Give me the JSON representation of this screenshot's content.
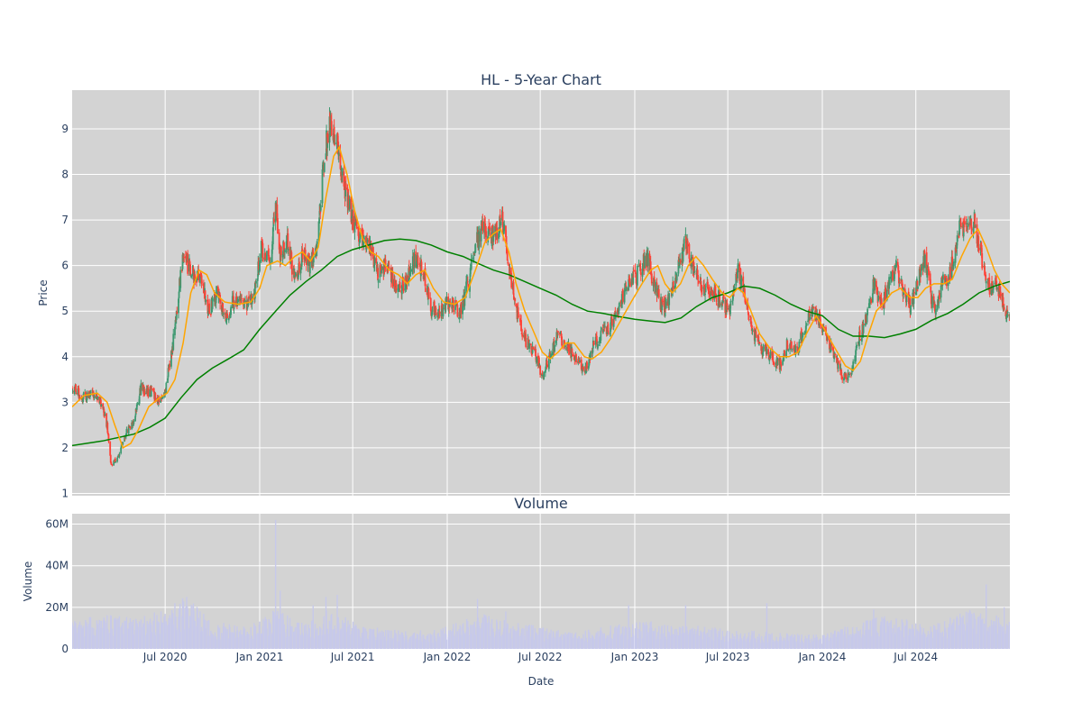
{
  "chart_data": {
    "type": "candlestick",
    "title": "HL - 5-Year Chart",
    "price_panel": {
      "ylabel": "Price",
      "ylim": [
        0.95,
        9.85
      ],
      "yticks": [
        1,
        2,
        3,
        4,
        5,
        6,
        7,
        8,
        9
      ],
      "background": "#d3d3d3",
      "grid": true
    },
    "volume_panel": {
      "title": "Volume",
      "ylabel": "Volume",
      "ylim": [
        0,
        65000000
      ],
      "yticks": [
        0,
        20000000,
        40000000,
        60000000
      ],
      "ytick_labels": [
        "0",
        "20M",
        "40M",
        "60M"
      ],
      "background": "#d3d3d3",
      "bar_color": "#c7c9ea",
      "grid": true
    },
    "xlabel": "Date",
    "x_range": [
      "2020-01-02",
      "2024-12-31"
    ],
    "x_ticks": [
      {
        "date": "2020-07-01",
        "label": "Jul 2020"
      },
      {
        "date": "2021-01-01",
        "label": "Jan 2021"
      },
      {
        "date": "2021-07-01",
        "label": "Jul 2021"
      },
      {
        "date": "2022-01-01",
        "label": "Jan 2022"
      },
      {
        "date": "2022-07-01",
        "label": "Jul 2022"
      },
      {
        "date": "2023-01-01",
        "label": "Jan 2023"
      },
      {
        "date": "2023-07-01",
        "label": "Jul 2023"
      },
      {
        "date": "2024-01-01",
        "label": "Jan 2024"
      },
      {
        "date": "2024-07-01",
        "label": "Jul 2024"
      }
    ],
    "colors": {
      "increasing": "#3d9970",
      "decreasing": "#ff4136",
      "ma_short": "#ffa500",
      "ma_long": "#008000"
    },
    "close_path": [
      [
        "2020-01-02",
        3.35
      ],
      [
        "2020-01-20",
        3.1
      ],
      [
        "2020-02-10",
        3.2
      ],
      [
        "2020-02-25",
        3.05
      ],
      [
        "2020-03-10",
        2.5
      ],
      [
        "2020-03-18",
        1.6
      ],
      [
        "2020-03-31",
        1.8
      ],
      [
        "2020-04-15",
        2.3
      ],
      [
        "2020-05-01",
        2.6
      ],
      [
        "2020-05-15",
        3.3
      ],
      [
        "2020-06-05",
        3.2
      ],
      [
        "2020-06-20",
        3.0
      ],
      [
        "2020-07-01",
        3.2
      ],
      [
        "2020-07-15",
        4.2
      ],
      [
        "2020-08-05",
        6.2
      ],
      [
        "2020-08-20",
        5.9
      ],
      [
        "2020-09-10",
        5.6
      ],
      [
        "2020-09-25",
        5.0
      ],
      [
        "2020-10-10",
        5.4
      ],
      [
        "2020-10-28",
        4.9
      ],
      [
        "2020-11-15",
        5.3
      ],
      [
        "2020-12-05",
        5.1
      ],
      [
        "2020-12-20",
        5.3
      ],
      [
        "2021-01-05",
        6.4
      ],
      [
        "2021-01-20",
        6.0
      ],
      [
        "2021-02-01",
        7.4
      ],
      [
        "2021-02-10",
        6.2
      ],
      [
        "2021-02-25",
        6.5
      ],
      [
        "2021-03-10",
        5.7
      ],
      [
        "2021-03-25",
        6.2
      ],
      [
        "2021-04-10",
        6.0
      ],
      [
        "2021-04-25",
        6.6
      ],
      [
        "2021-05-05",
        8.3
      ],
      [
        "2021-05-18",
        9.1
      ],
      [
        "2021-06-01",
        8.7
      ],
      [
        "2021-06-15",
        7.6
      ],
      [
        "2021-07-01",
        7.0
      ],
      [
        "2021-07-20",
        6.5
      ],
      [
        "2021-08-05",
        6.4
      ],
      [
        "2021-08-20",
        5.8
      ],
      [
        "2021-09-05",
        6.0
      ],
      [
        "2021-09-25",
        5.5
      ],
      [
        "2021-10-15",
        5.7
      ],
      [
        "2021-10-28",
        6.1
      ],
      [
        "2021-11-15",
        5.9
      ],
      [
        "2021-12-01",
        5.1
      ],
      [
        "2021-12-20",
        5.0
      ],
      [
        "2022-01-05",
        5.2
      ],
      [
        "2022-01-25",
        5.0
      ],
      [
        "2022-02-10",
        5.6
      ],
      [
        "2022-03-01",
        6.6
      ],
      [
        "2022-03-15",
        6.9
      ],
      [
        "2022-04-01",
        6.6
      ],
      [
        "2022-04-18",
        7.0
      ],
      [
        "2022-05-05",
        5.7
      ],
      [
        "2022-05-20",
        4.8
      ],
      [
        "2022-06-05",
        4.3
      ],
      [
        "2022-06-20",
        4.1
      ],
      [
        "2022-07-05",
        3.6
      ],
      [
        "2022-07-20",
        4.0
      ],
      [
        "2022-08-05",
        4.5
      ],
      [
        "2022-08-25",
        4.2
      ],
      [
        "2022-09-10",
        3.9
      ],
      [
        "2022-09-28",
        3.7
      ],
      [
        "2022-10-10",
        4.2
      ],
      [
        "2022-10-28",
        4.5
      ],
      [
        "2022-11-15",
        4.7
      ],
      [
        "2022-12-01",
        5.0
      ],
      [
        "2022-12-15",
        5.5
      ],
      [
        "2023-01-05",
        5.8
      ],
      [
        "2023-01-25",
        6.2
      ],
      [
        "2023-02-10",
        5.5
      ],
      [
        "2023-02-25",
        5.0
      ],
      [
        "2023-03-10",
        5.3
      ],
      [
        "2023-03-25",
        5.9
      ],
      [
        "2023-04-10",
        6.5
      ],
      [
        "2023-04-25",
        6.0
      ],
      [
        "2023-05-15",
        5.5
      ],
      [
        "2023-06-01",
        5.4
      ],
      [
        "2023-06-20",
        5.2
      ],
      [
        "2023-07-05",
        5.0
      ],
      [
        "2023-07-20",
        5.9
      ],
      [
        "2023-08-05",
        5.2
      ],
      [
        "2023-08-20",
        4.5
      ],
      [
        "2023-09-05",
        4.2
      ],
      [
        "2023-09-25",
        4.0
      ],
      [
        "2023-10-10",
        3.8
      ],
      [
        "2023-10-25",
        4.3
      ],
      [
        "2023-11-10",
        4.1
      ],
      [
        "2023-11-28",
        4.6
      ],
      [
        "2023-12-10",
        5.0
      ],
      [
        "2023-12-28",
        4.8
      ],
      [
        "2024-01-10",
        4.4
      ],
      [
        "2024-01-25",
        4.0
      ],
      [
        "2024-02-10",
        3.6
      ],
      [
        "2024-02-25",
        3.5
      ],
      [
        "2024-03-10",
        4.3
      ],
      [
        "2024-03-25",
        4.8
      ],
      [
        "2024-04-10",
        5.6
      ],
      [
        "2024-04-25",
        5.1
      ],
      [
        "2024-05-10",
        5.6
      ],
      [
        "2024-05-22",
        6.0
      ],
      [
        "2024-06-05",
        5.5
      ],
      [
        "2024-06-20",
        5.1
      ],
      [
        "2024-07-05",
        5.6
      ],
      [
        "2024-07-18",
        6.2
      ],
      [
        "2024-08-05",
        5.0
      ],
      [
        "2024-08-20",
        5.6
      ],
      [
        "2024-09-05",
        5.8
      ],
      [
        "2024-09-25",
        6.9
      ],
      [
        "2024-10-10",
        6.8
      ],
      [
        "2024-10-22",
        7.0
      ],
      [
        "2024-11-05",
        6.2
      ],
      [
        "2024-11-20",
        5.5
      ],
      [
        "2024-12-05",
        5.6
      ],
      [
        "2024-12-20",
        5.0
      ],
      [
        "2024-12-31",
        4.9
      ]
    ],
    "ma_short": [
      [
        "2020-01-02",
        2.9
      ],
      [
        "2020-01-25",
        3.15
      ],
      [
        "2020-02-20",
        3.2
      ],
      [
        "2020-03-10",
        3.0
      ],
      [
        "2020-03-25",
        2.5
      ],
      [
        "2020-04-10",
        2.0
      ],
      [
        "2020-04-25",
        2.1
      ],
      [
        "2020-05-10",
        2.4
      ],
      [
        "2020-05-30",
        2.9
      ],
      [
        "2020-06-20",
        3.1
      ],
      [
        "2020-07-05",
        3.2
      ],
      [
        "2020-07-20",
        3.5
      ],
      [
        "2020-08-05",
        4.3
      ],
      [
        "2020-08-20",
        5.4
      ],
      [
        "2020-09-05",
        5.9
      ],
      [
        "2020-09-20",
        5.8
      ],
      [
        "2020-10-05",
        5.4
      ],
      [
        "2020-10-25",
        5.2
      ],
      [
        "2020-11-20",
        5.15
      ],
      [
        "2020-12-15",
        5.2
      ],
      [
        "2021-01-01",
        5.5
      ],
      [
        "2021-01-15",
        6.0
      ],
      [
        "2021-02-05",
        6.1
      ],
      [
        "2021-02-20",
        6.0
      ],
      [
        "2021-03-10",
        6.2
      ],
      [
        "2021-03-25",
        6.3
      ],
      [
        "2021-04-10",
        6.1
      ],
      [
        "2021-04-25",
        6.4
      ],
      [
        "2021-05-10",
        7.5
      ],
      [
        "2021-05-25",
        8.4
      ],
      [
        "2021-06-05",
        8.6
      ],
      [
        "2021-06-20",
        8.0
      ],
      [
        "2021-07-05",
        7.2
      ],
      [
        "2021-07-20",
        6.6
      ],
      [
        "2021-08-05",
        6.3
      ],
      [
        "2021-08-20",
        6.2
      ],
      [
        "2021-09-10",
        5.9
      ],
      [
        "2021-09-28",
        5.8
      ],
      [
        "2021-10-15",
        5.6
      ],
      [
        "2021-11-01",
        5.8
      ],
      [
        "2021-11-18",
        5.9
      ],
      [
        "2021-12-05",
        5.5
      ],
      [
        "2021-12-25",
        5.2
      ],
      [
        "2022-01-15",
        5.15
      ],
      [
        "2022-02-05",
        5.3
      ],
      [
        "2022-02-25",
        5.9
      ],
      [
        "2022-03-15",
        6.5
      ],
      [
        "2022-04-01",
        6.7
      ],
      [
        "2022-04-15",
        6.8
      ],
      [
        "2022-05-01",
        6.3
      ],
      [
        "2022-05-15",
        5.6
      ],
      [
        "2022-06-01",
        5.0
      ],
      [
        "2022-06-20",
        4.5
      ],
      [
        "2022-07-05",
        4.1
      ],
      [
        "2022-07-20",
        3.95
      ],
      [
        "2022-08-05",
        4.1
      ],
      [
        "2022-08-20",
        4.3
      ],
      [
        "2022-09-05",
        4.3
      ],
      [
        "2022-09-25",
        4.0
      ],
      [
        "2022-10-10",
        3.95
      ],
      [
        "2022-10-28",
        4.1
      ],
      [
        "2022-11-15",
        4.4
      ],
      [
        "2022-12-05",
        4.8
      ],
      [
        "2022-12-25",
        5.2
      ],
      [
        "2023-01-15",
        5.6
      ],
      [
        "2023-02-01",
        5.9
      ],
      [
        "2023-02-15",
        6.0
      ],
      [
        "2023-03-01",
        5.6
      ],
      [
        "2023-03-15",
        5.4
      ],
      [
        "2023-03-31",
        5.6
      ],
      [
        "2023-04-15",
        6.0
      ],
      [
        "2023-04-30",
        6.2
      ],
      [
        "2023-05-15",
        6.0
      ],
      [
        "2023-06-01",
        5.7
      ],
      [
        "2023-06-20",
        5.4
      ],
      [
        "2023-07-05",
        5.3
      ],
      [
        "2023-07-20",
        5.5
      ],
      [
        "2023-08-01",
        5.4
      ],
      [
        "2023-08-15",
        5.0
      ],
      [
        "2023-09-01",
        4.5
      ],
      [
        "2023-09-20",
        4.2
      ],
      [
        "2023-10-10",
        4.0
      ],
      [
        "2023-10-28",
        4.0
      ],
      [
        "2023-11-15",
        4.1
      ],
      [
        "2023-12-01",
        4.5
      ],
      [
        "2023-12-20",
        4.9
      ],
      [
        "2024-01-05",
        4.6
      ],
      [
        "2024-01-25",
        4.2
      ],
      [
        "2024-02-15",
        3.8
      ],
      [
        "2024-03-01",
        3.7
      ],
      [
        "2024-03-15",
        3.9
      ],
      [
        "2024-03-31",
        4.5
      ],
      [
        "2024-04-15",
        5.0
      ],
      [
        "2024-05-01",
        5.2
      ],
      [
        "2024-05-15",
        5.4
      ],
      [
        "2024-06-01",
        5.5
      ],
      [
        "2024-06-20",
        5.3
      ],
      [
        "2024-07-05",
        5.3
      ],
      [
        "2024-07-20",
        5.5
      ],
      [
        "2024-08-05",
        5.6
      ],
      [
        "2024-08-25",
        5.6
      ],
      [
        "2024-09-10",
        5.7
      ],
      [
        "2024-09-28",
        6.2
      ],
      [
        "2024-10-15",
        6.6
      ],
      [
        "2024-10-30",
        6.8
      ],
      [
        "2024-11-15",
        6.4
      ],
      [
        "2024-12-01",
        5.9
      ],
      [
        "2024-12-15",
        5.6
      ],
      [
        "2024-12-31",
        5.4
      ]
    ],
    "ma_long": [
      [
        "2020-01-02",
        2.05
      ],
      [
        "2020-03-01",
        2.15
      ],
      [
        "2020-05-01",
        2.3
      ],
      [
        "2020-06-01",
        2.45
      ],
      [
        "2020-07-01",
        2.65
      ],
      [
        "2020-08-01",
        3.1
      ],
      [
        "2020-09-01",
        3.5
      ],
      [
        "2020-10-01",
        3.75
      ],
      [
        "2020-11-01",
        3.95
      ],
      [
        "2020-12-01",
        4.15
      ],
      [
        "2021-01-01",
        4.6
      ],
      [
        "2021-02-01",
        5.0
      ],
      [
        "2021-03-01",
        5.35
      ],
      [
        "2021-04-01",
        5.65
      ],
      [
        "2021-05-01",
        5.9
      ],
      [
        "2021-06-01",
        6.2
      ],
      [
        "2021-07-01",
        6.35
      ],
      [
        "2021-08-01",
        6.45
      ],
      [
        "2021-09-01",
        6.55
      ],
      [
        "2021-10-01",
        6.58
      ],
      [
        "2021-11-01",
        6.55
      ],
      [
        "2021-12-01",
        6.45
      ],
      [
        "2022-01-01",
        6.3
      ],
      [
        "2022-02-01",
        6.2
      ],
      [
        "2022-03-01",
        6.05
      ],
      [
        "2022-04-01",
        5.9
      ],
      [
        "2022-05-01",
        5.8
      ],
      [
        "2022-06-01",
        5.65
      ],
      [
        "2022-07-01",
        5.5
      ],
      [
        "2022-08-01",
        5.35
      ],
      [
        "2022-09-01",
        5.15
      ],
      [
        "2022-10-01",
        5.0
      ],
      [
        "2022-11-01",
        4.95
      ],
      [
        "2022-12-01",
        4.88
      ],
      [
        "2023-01-01",
        4.82
      ],
      [
        "2023-02-01",
        4.78
      ],
      [
        "2023-03-01",
        4.75
      ],
      [
        "2023-04-01",
        4.85
      ],
      [
        "2023-05-01",
        5.1
      ],
      [
        "2023-06-01",
        5.3
      ],
      [
        "2023-07-01",
        5.4
      ],
      [
        "2023-08-01",
        5.55
      ],
      [
        "2023-09-01",
        5.5
      ],
      [
        "2023-10-01",
        5.35
      ],
      [
        "2023-11-01",
        5.15
      ],
      [
        "2023-12-01",
        5.0
      ],
      [
        "2024-01-01",
        4.9
      ],
      [
        "2024-02-01",
        4.6
      ],
      [
        "2024-03-01",
        4.45
      ],
      [
        "2024-04-01",
        4.45
      ],
      [
        "2024-05-01",
        4.42
      ],
      [
        "2024-06-01",
        4.5
      ],
      [
        "2024-07-01",
        4.6
      ],
      [
        "2024-08-01",
        4.8
      ],
      [
        "2024-09-01",
        4.95
      ],
      [
        "2024-10-01",
        5.15
      ],
      [
        "2024-11-01",
        5.4
      ],
      [
        "2024-12-01",
        5.55
      ],
      [
        "2024-12-31",
        5.65
      ]
    ],
    "volume_profile": [
      [
        "2020-01-02",
        10000000
      ],
      [
        "2020-03-15",
        13000000
      ],
      [
        "2020-05-01",
        11000000
      ],
      [
        "2020-07-15",
        15000000
      ],
      [
        "2020-08-10",
        19000000
      ],
      [
        "2020-10-01",
        10000000
      ],
      [
        "2020-12-01",
        8000000
      ],
      [
        "2021-02-01",
        14000000
      ],
      [
        "2021-04-01",
        9000000
      ],
      [
        "2021-05-20",
        16000000
      ],
      [
        "2021-07-01",
        10000000
      ],
      [
        "2021-09-01",
        7000000
      ],
      [
        "2021-12-01",
        6500000
      ],
      [
        "2022-03-15",
        13000000
      ],
      [
        "2022-05-01",
        10000000
      ],
      [
        "2022-07-01",
        8000000
      ],
      [
        "2022-09-01",
        6000000
      ],
      [
        "2022-11-01",
        8000000
      ],
      [
        "2023-01-15",
        10000000
      ],
      [
        "2023-04-15",
        9000000
      ],
      [
        "2023-07-01",
        7000000
      ],
      [
        "2023-10-01",
        6000000
      ],
      [
        "2024-01-01",
        5000000
      ],
      [
        "2024-04-15",
        12000000
      ],
      [
        "2024-06-01",
        11000000
      ],
      [
        "2024-08-01",
        9000000
      ],
      [
        "2024-10-15",
        14000000
      ],
      [
        "2024-12-31",
        11000000
      ]
    ],
    "volume_spikes": [
      [
        "2020-07-20",
        22000000
      ],
      [
        "2020-08-10",
        20000000
      ],
      [
        "2021-02-01",
        62000000
      ],
      [
        "2021-02-10",
        28000000
      ],
      [
        "2021-04-15",
        21000000
      ],
      [
        "2021-05-10",
        25000000
      ],
      [
        "2021-06-01",
        26000000
      ],
      [
        "2021-07-10",
        20000000
      ],
      [
        "2022-03-01",
        24000000
      ],
      [
        "2022-04-25",
        18000000
      ],
      [
        "2022-10-15",
        20000000
      ],
      [
        "2022-12-20",
        21000000
      ],
      [
        "2023-04-10",
        21000000
      ],
      [
        "2023-09-15",
        22000000
      ],
      [
        "2024-04-10",
        19000000
      ],
      [
        "2024-06-01",
        19000000
      ],
      [
        "2024-10-15",
        18000000
      ],
      [
        "2024-11-15",
        31000000
      ],
      [
        "2024-12-20",
        20000000
      ]
    ]
  }
}
